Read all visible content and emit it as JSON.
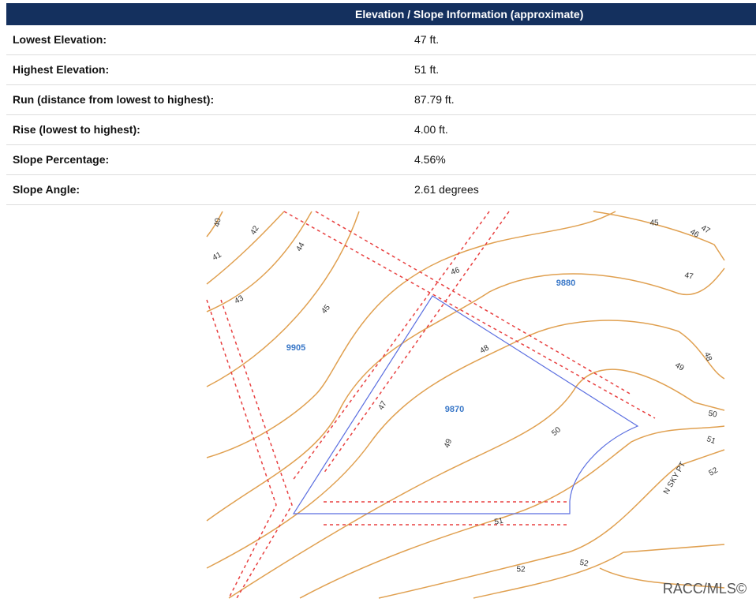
{
  "header": {
    "title": "Elevation / Slope Information (approximate)"
  },
  "table": {
    "rows": [
      [
        "Lowest Elevation:",
        "47 ft."
      ],
      [
        "Highest Elevation:",
        "51 ft."
      ],
      [
        "Run (distance from lowest to highest):",
        "87.79 ft."
      ],
      [
        "Rise (lowest to highest):",
        "4.00 ft."
      ],
      [
        "Slope Percentage:",
        "4.56%"
      ],
      [
        "Slope Angle:",
        "2.61 degrees"
      ]
    ]
  },
  "map": {
    "labels": [
      "40",
      "42",
      "41",
      "44",
      "43",
      "45",
      "9905",
      "46",
      "45",
      "46",
      "47",
      "47",
      "9880",
      "48",
      "48",
      "49",
      "47",
      "9870",
      "49",
      "50",
      "50",
      "51",
      "52",
      "N SKY PT",
      "51",
      "52",
      "52"
    ],
    "watermark": "RACC/MLS©"
  }
}
